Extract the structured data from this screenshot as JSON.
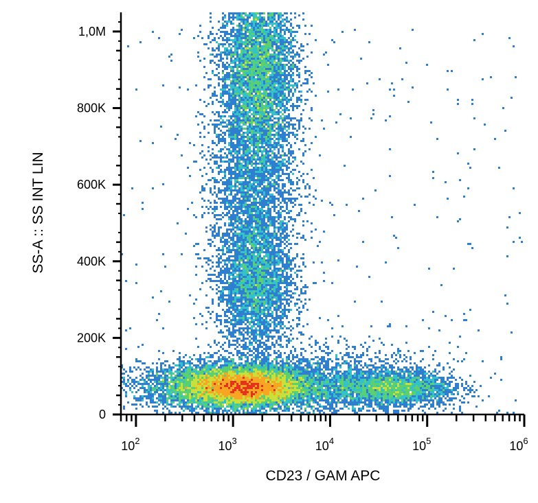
{
  "chart_data": {
    "type": "scatter",
    "subtype": "flow-cytometry density plot",
    "xlabel": "CD23  / GAM APC",
    "ylabel": "SS-A :: SS INT LIN",
    "x_scale": "log",
    "y_scale": "linear",
    "xlim": [
      70,
      1000000
    ],
    "ylim": [
      0,
      1050000
    ],
    "x_ticks": [
      {
        "value": 100,
        "base": "10",
        "exp": "2"
      },
      {
        "value": 1000,
        "base": "10",
        "exp": "3"
      },
      {
        "value": 10000,
        "base": "10",
        "exp": "4"
      },
      {
        "value": 100000,
        "base": "10",
        "exp": "5"
      },
      {
        "value": 1000000,
        "base": "10",
        "exp": "6"
      }
    ],
    "y_ticks": [
      {
        "value": 0,
        "label": "0"
      },
      {
        "value": 200000,
        "label": "200K"
      },
      {
        "value": 400000,
        "label": "400K"
      },
      {
        "value": 600000,
        "label": "600K"
      },
      {
        "value": 800000,
        "label": "800K"
      },
      {
        "value": 1000000,
        "label": "1,0M"
      }
    ],
    "populations": [
      {
        "x_center": 1300,
        "y_center": 70000,
        "x_spread_log": 0.28,
        "y_spread": 22000,
        "weight": 9000
      },
      {
        "x_center": 900,
        "y_center": 75000,
        "x_spread_log": 0.45,
        "y_spread": 30000,
        "weight": 7000
      },
      {
        "x_center": 1800,
        "y_center": 900000,
        "x_spread_log": 0.2,
        "y_spread": 130000,
        "weight": 7000
      },
      {
        "x_center": 1700,
        "y_center": 340000,
        "x_spread_log": 0.2,
        "y_spread": 90000,
        "weight": 3500
      },
      {
        "x_center": 45000,
        "y_center": 68000,
        "x_spread_log": 0.3,
        "y_spread": 22000,
        "weight": 2500
      },
      {
        "x_center": 8000,
        "y_center": 80000,
        "x_spread_log": 0.6,
        "y_spread": 45000,
        "weight": 2500
      },
      {
        "x_center": 1600,
        "y_center": 600000,
        "x_spread_log": 0.22,
        "y_spread": 120000,
        "weight": 2500
      }
    ],
    "color_scale": [
      "#2b3a9c",
      "#2f7fd0",
      "#33c2c9",
      "#5ccf6e",
      "#c9e03a",
      "#f6a623",
      "#e8311c"
    ],
    "grid": false,
    "legend": "none"
  }
}
